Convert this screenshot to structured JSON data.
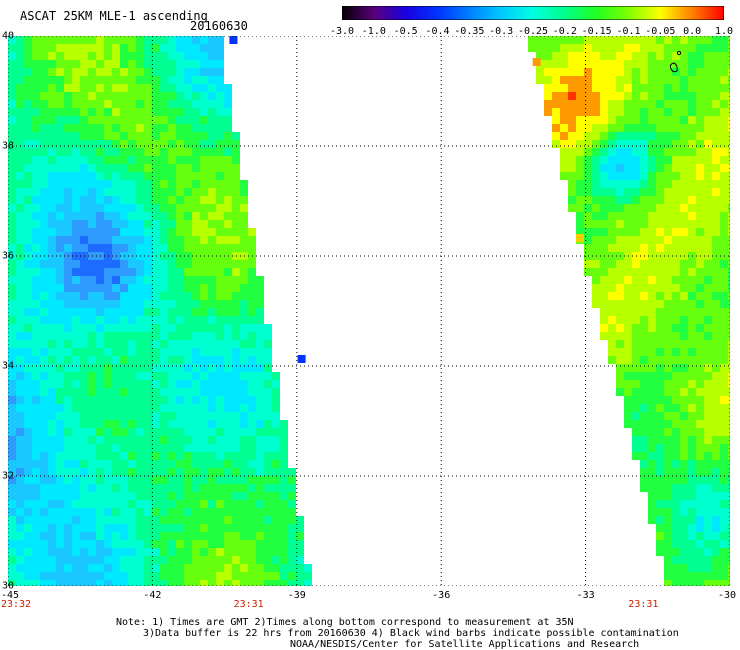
{
  "header": {
    "title": "ASCAT 25KM MLE-1 ascending",
    "date": "20160630"
  },
  "color_scale": {
    "ticks": [
      "-3.0",
      "-1.0",
      "-0.5",
      "-0.4",
      "-0.35",
      "-0.3",
      "-0.25",
      "-0.2",
      "-0.15",
      "-0.1",
      "-0.05",
      "0.0",
      "1.0"
    ],
    "colors": [
      "#000000",
      "#5a007a",
      "#1a00e0",
      "#0033ff",
      "#007fff",
      "#00c8ff",
      "#00ffe0",
      "#00ff8a",
      "#22ff22",
      "#7fff00",
      "#ffff00",
      "#ff7f00",
      "#ff0000"
    ]
  },
  "map": {
    "y_ticks": [
      "40",
      "38",
      "36",
      "34",
      "32",
      "30"
    ],
    "x_ticks": [
      "-45",
      "-42",
      "-39",
      "-36",
      "-33",
      "-30"
    ],
    "lat_range": [
      30,
      40
    ],
    "lon_range": [
      -45,
      -30
    ],
    "grid": "dotted",
    "swath_west": {
      "lon_west_edge_at_top": -45,
      "lon_east_edge_at_top": -40.6,
      "lon_east_edge_at_bottom": -38.7
    },
    "swath_east": {
      "lon_west_edge_at_top": -34.2,
      "lon_west_edge_at_bottom": -31.3,
      "lon_east_edge": -30
    }
  },
  "times": [
    {
      "label": "23:32",
      "lon": -45
    },
    {
      "label": "23:31",
      "lon": -40
    },
    {
      "label": "23:31",
      "lon": -31.8
    }
  ],
  "notes": {
    "line1": "Note: 1) Times are GMT 2)Times along bottom correspond to measurement at 35N",
    "line2": "3)Data buffer is 22 hrs from 20160630 4) Black wind barbs indicate possible contamination",
    "line3": "NOAA/NESDIS/Center for Satellite Applications and Research"
  }
}
